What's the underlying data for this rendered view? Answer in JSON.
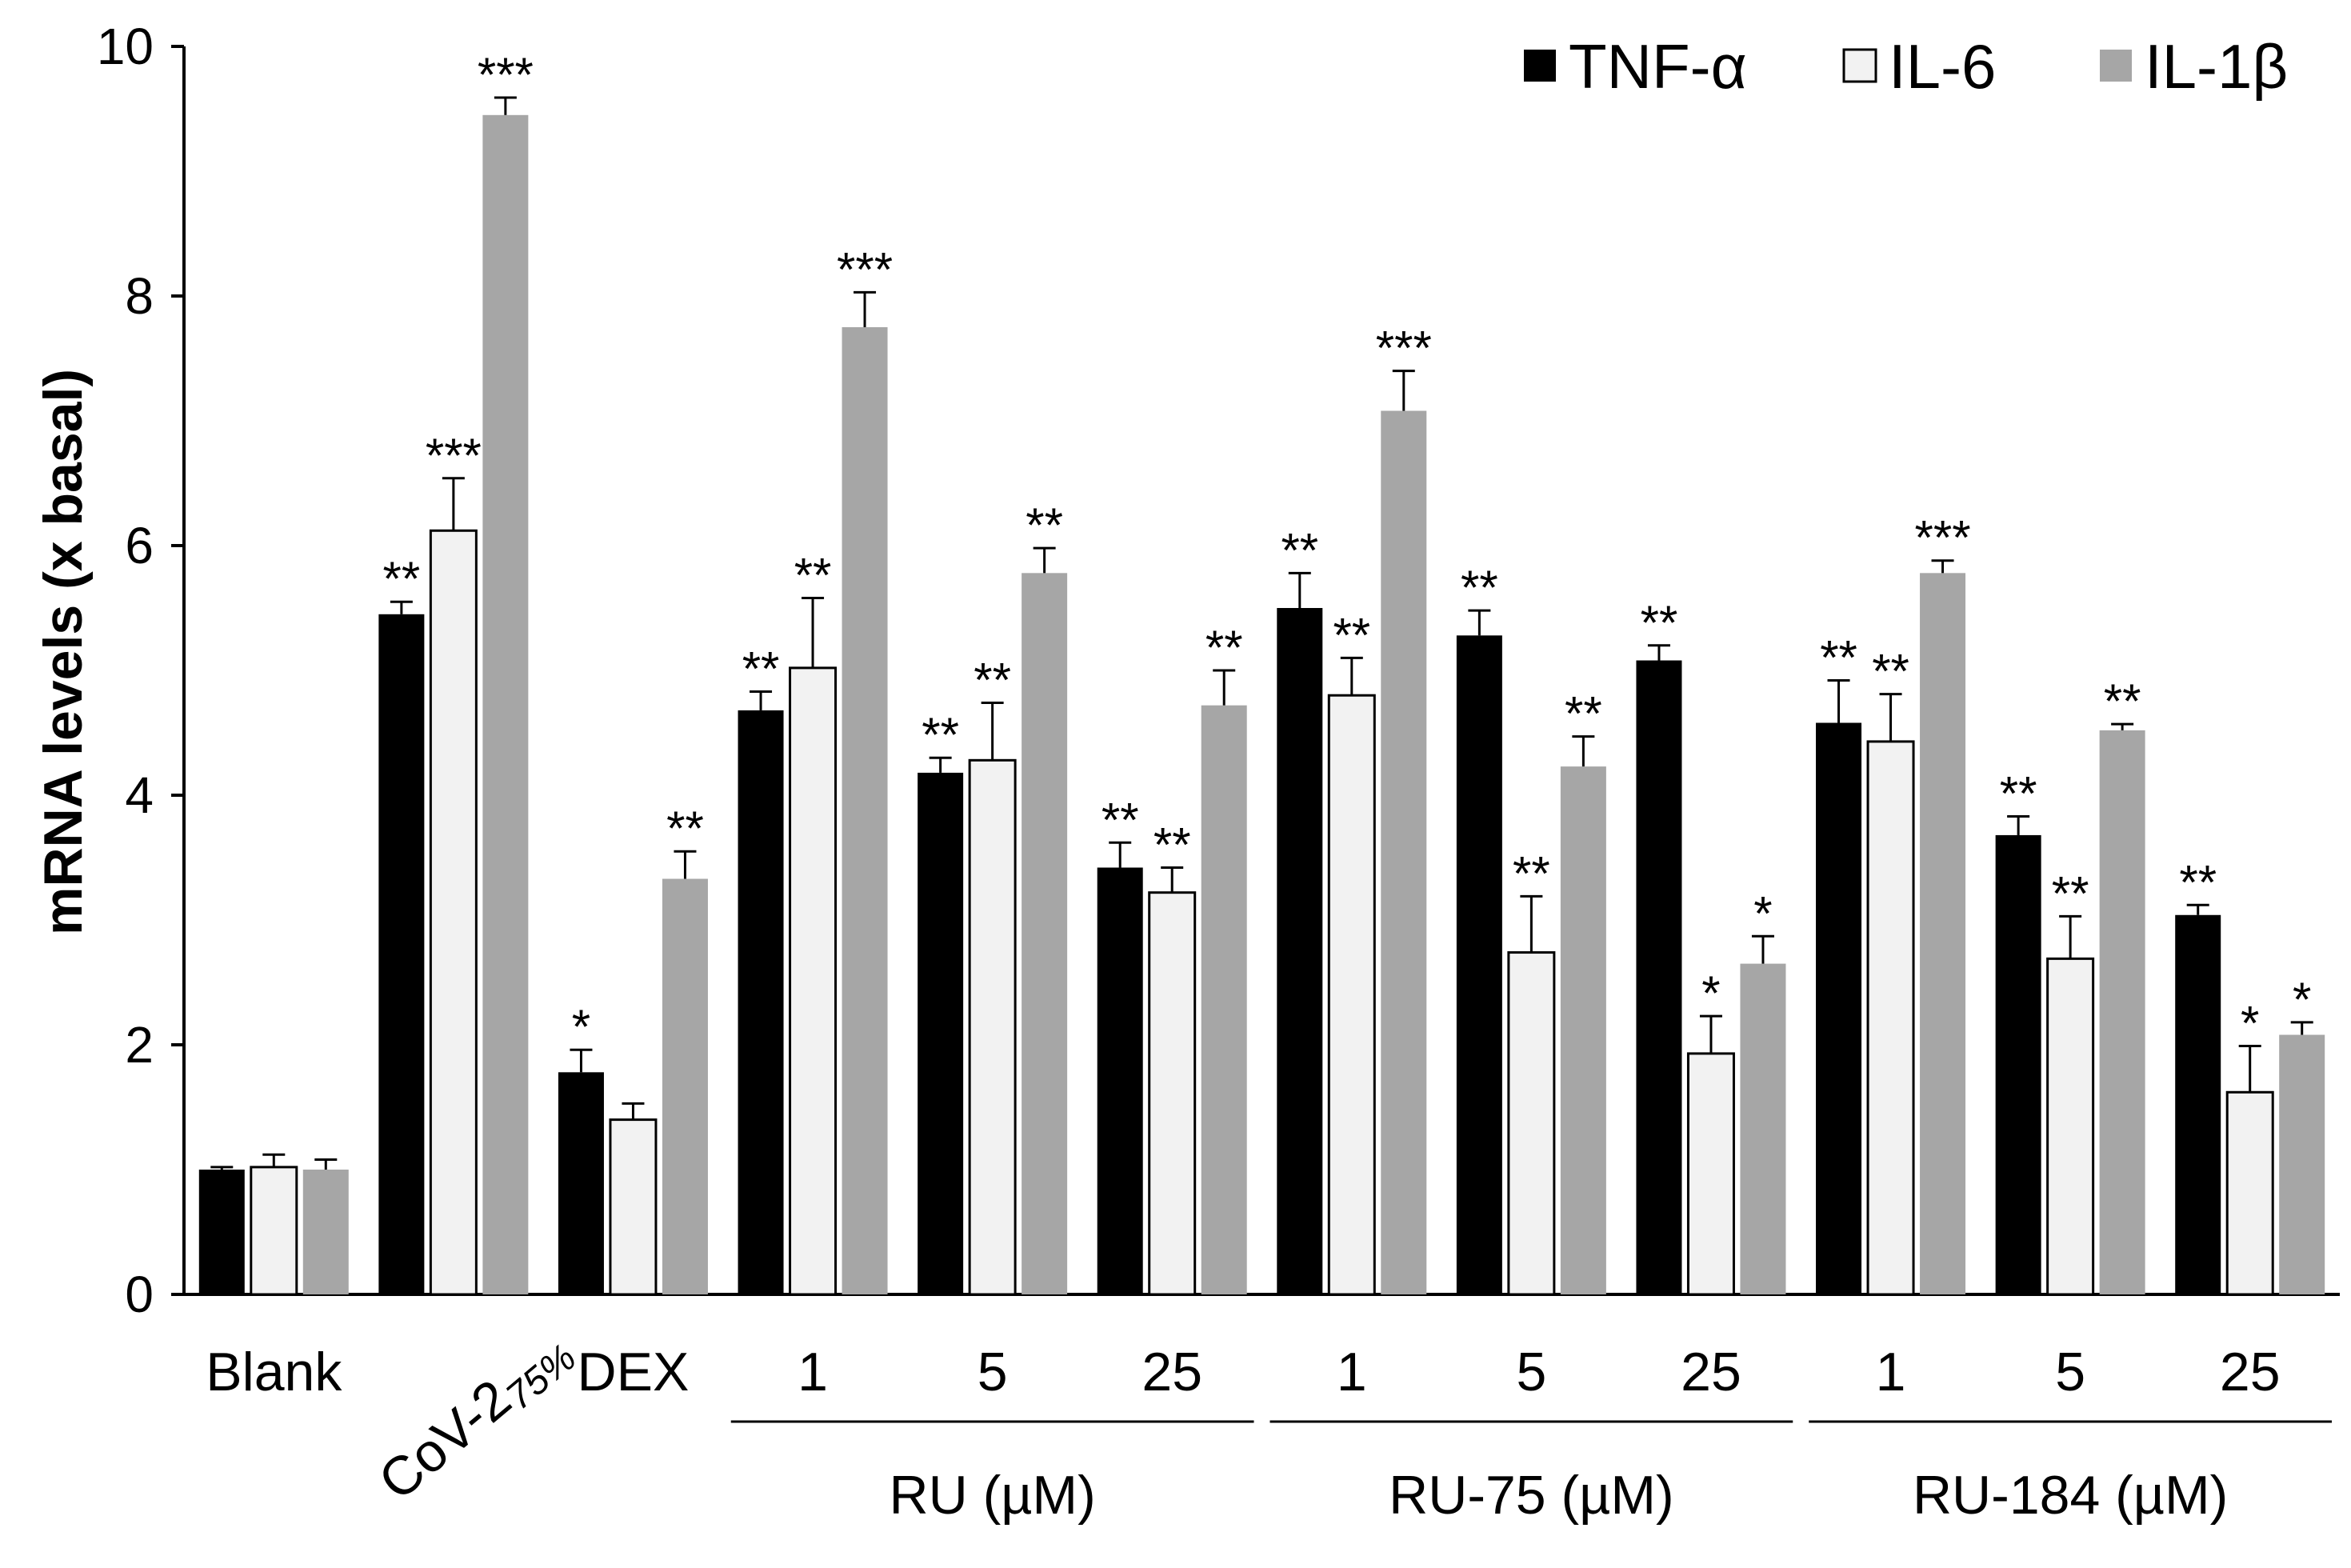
{
  "chart_data": {
    "type": "bar",
    "title": "",
    "xlabel": "",
    "ylabel": "mRNA levels  (x basal)",
    "ylim": [
      0,
      10
    ],
    "yticks": [
      "0",
      "2",
      "4",
      "6",
      "8",
      "10"
    ],
    "grid": false,
    "legend_position": "top-right",
    "categories": [
      "Blank",
      "CoV-2",
      "DEX",
      "1",
      "5",
      "25",
      "1",
      "5",
      "25",
      "1",
      "5",
      "25"
    ],
    "category_subscripts": [
      "",
      "75%",
      "",
      "",
      "",
      "",
      "",
      "",
      "",
      "",
      "",
      ""
    ],
    "groups": [
      {
        "label": "RU (µM)",
        "start": 3,
        "end": 5
      },
      {
        "label": "RU-75 (µM)",
        "start": 6,
        "end": 8
      },
      {
        "label": "RU-184 (µM)",
        "start": 9,
        "end": 11
      }
    ],
    "series": [
      {
        "name": "TNF-α",
        "color": "#000000",
        "values": [
          1.0,
          5.45,
          1.78,
          4.68,
          4.18,
          3.42,
          5.5,
          5.28,
          5.08,
          4.58,
          3.68,
          3.04
        ],
        "errors": [
          0.02,
          0.1,
          0.18,
          0.15,
          0.12,
          0.2,
          0.28,
          0.2,
          0.12,
          0.34,
          0.15,
          0.08
        ],
        "significance": [
          "",
          "**",
          "*",
          "**",
          "**",
          "**",
          "**",
          "**",
          "**",
          "**",
          "**",
          "**"
        ]
      },
      {
        "name": "IL-6",
        "color": "#f2f2f2",
        "values": [
          1.02,
          6.12,
          1.4,
          5.02,
          4.28,
          3.22,
          4.8,
          2.74,
          1.93,
          4.43,
          2.69,
          1.62
        ],
        "errors": [
          0.1,
          0.42,
          0.13,
          0.56,
          0.46,
          0.2,
          0.3,
          0.45,
          0.3,
          0.38,
          0.34,
          0.37
        ],
        "significance": [
          "",
          "***",
          "",
          "**",
          "**",
          "**",
          "**",
          "**",
          "*",
          "**",
          "**",
          "*"
        ]
      },
      {
        "name": "IL-1β",
        "color": "#a6a6a6",
        "values": [
          1.0,
          9.45,
          3.33,
          7.75,
          5.78,
          4.72,
          7.08,
          4.23,
          2.65,
          5.78,
          4.52,
          2.08
        ],
        "errors": [
          0.08,
          0.14,
          0.22,
          0.28,
          0.2,
          0.28,
          0.32,
          0.24,
          0.22,
          0.1,
          0.05,
          0.1
        ],
        "significance": [
          "",
          "***",
          "**",
          "***",
          "**",
          "**",
          "***",
          "**",
          "*",
          "***",
          "**",
          "*"
        ]
      }
    ]
  }
}
